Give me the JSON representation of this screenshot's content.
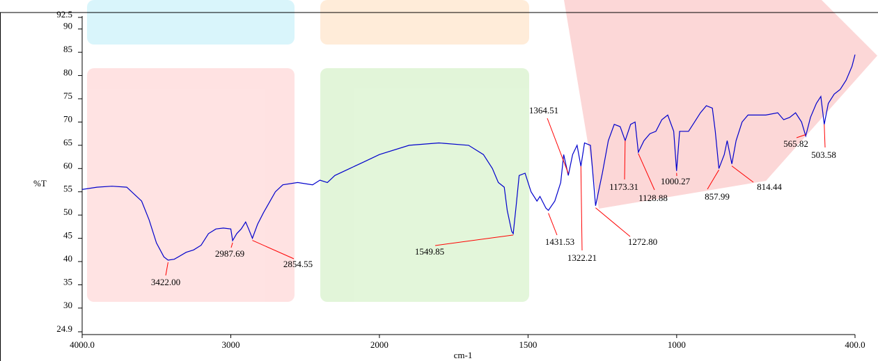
{
  "chart_data": {
    "type": "line",
    "xlabel": "cm-1",
    "ylabel": "%T",
    "xlim": [
      4000,
      400
    ],
    "ylim": [
      24.9,
      92.5
    ],
    "xscale": {
      "break": 2000,
      "ratio": 2
    },
    "xticks": [
      {
        "value": 4000,
        "label": "4000.0"
      },
      3000,
      2000,
      1500,
      1000,
      {
        "value": 400,
        "label": "400.0"
      }
    ],
    "yticks": [
      24.9,
      30,
      35,
      40,
      45,
      50,
      55,
      60,
      65,
      70,
      75,
      80,
      85,
      90,
      92.5
    ],
    "x": [
      4000,
      3900,
      3800,
      3700,
      3600,
      3550,
      3500,
      3450,
      3422,
      3380,
      3300,
      3250,
      3200,
      3150,
      3100,
      3050,
      3000,
      2987.69,
      2960,
      2930,
      2900,
      2880,
      2854.55,
      2820,
      2780,
      2700,
      2650,
      2550,
      2450,
      2400,
      2350,
      2300,
      2200,
      2100,
      2000,
      1900,
      1800,
      1700,
      1650,
      1620,
      1600,
      1580,
      1570,
      1555,
      1549.85,
      1540,
      1530,
      1510,
      1490,
      1470,
      1460,
      1440,
      1431.53,
      1410,
      1390,
      1380,
      1364.51,
      1350,
      1335,
      1322.21,
      1310,
      1290,
      1272.8,
      1250,
      1230,
      1210,
      1190,
      1173.31,
      1155,
      1140,
      1128.88,
      1110,
      1090,
      1070,
      1050,
      1030,
      1010,
      1000.27,
      990,
      960,
      940,
      920,
      900,
      880,
      870,
      857.99,
      840,
      830,
      814.44,
      800,
      780,
      760,
      700,
      660,
      640,
      620,
      600,
      580,
      565.82,
      550,
      530,
      515,
      503.58,
      490,
      470,
      450,
      430,
      410,
      400
    ],
    "series": [
      {
        "color": "#0000cc",
        "values": [
          55.5,
          56,
          56.2,
          56,
          53,
          49,
          44,
          41,
          40.3,
          40.5,
          42,
          42.5,
          43.5,
          46,
          47,
          47.2,
          47,
          44.5,
          46,
          47,
          48.5,
          47,
          45,
          48,
          50.5,
          55,
          56.5,
          57,
          56.5,
          57.5,
          57,
          58.5,
          60,
          61.5,
          63,
          65,
          65.5,
          65,
          63,
          60,
          57,
          56,
          51,
          46.5,
          46,
          52,
          58.5,
          59,
          55,
          53,
          54,
          51.5,
          51,
          53,
          57,
          63,
          58.5,
          63,
          65,
          60.5,
          65.5,
          65,
          52,
          59,
          66,
          69.5,
          69,
          66,
          69.5,
          70,
          63.5,
          66,
          67.5,
          68,
          70.5,
          71.5,
          68,
          59.5,
          68,
          68,
          70,
          72,
          73.5,
          73,
          68,
          60,
          63,
          66,
          61,
          66,
          70,
          71.5,
          71.5,
          72,
          70.5,
          71,
          72,
          70,
          67,
          71,
          74,
          75.5,
          69.5,
          74,
          76,
          77,
          79,
          82,
          84.5
        ]
      }
    ],
    "annotation_color": "#ff0000",
    "annotations": [
      {
        "x": 3422,
        "label": "3422.00"
      },
      {
        "x": 2987.69,
        "label": "2987.69"
      },
      {
        "x": 2854.55,
        "label": "2854.55"
      },
      {
        "x": 1549.85,
        "label": "1549.85"
      },
      {
        "x": 1431.53,
        "label": "1431.53"
      },
      {
        "x": 1364.51,
        "label": "1364.51"
      },
      {
        "x": 1322.21,
        "label": "1322.21"
      },
      {
        "x": 1272.8,
        "label": "1272.80"
      },
      {
        "x": 1173.31,
        "label": "1173.31"
      },
      {
        "x": 1128.88,
        "label": "1128.88"
      },
      {
        "x": 1000.27,
        "label": "1000.27"
      },
      {
        "x": 857.99,
        "label": "857.99"
      },
      {
        "x": 814.44,
        "label": "814.44"
      },
      {
        "x": 565.82,
        "label": "565.82"
      },
      {
        "x": 503.58,
        "label": "503.58"
      }
    ]
  }
}
